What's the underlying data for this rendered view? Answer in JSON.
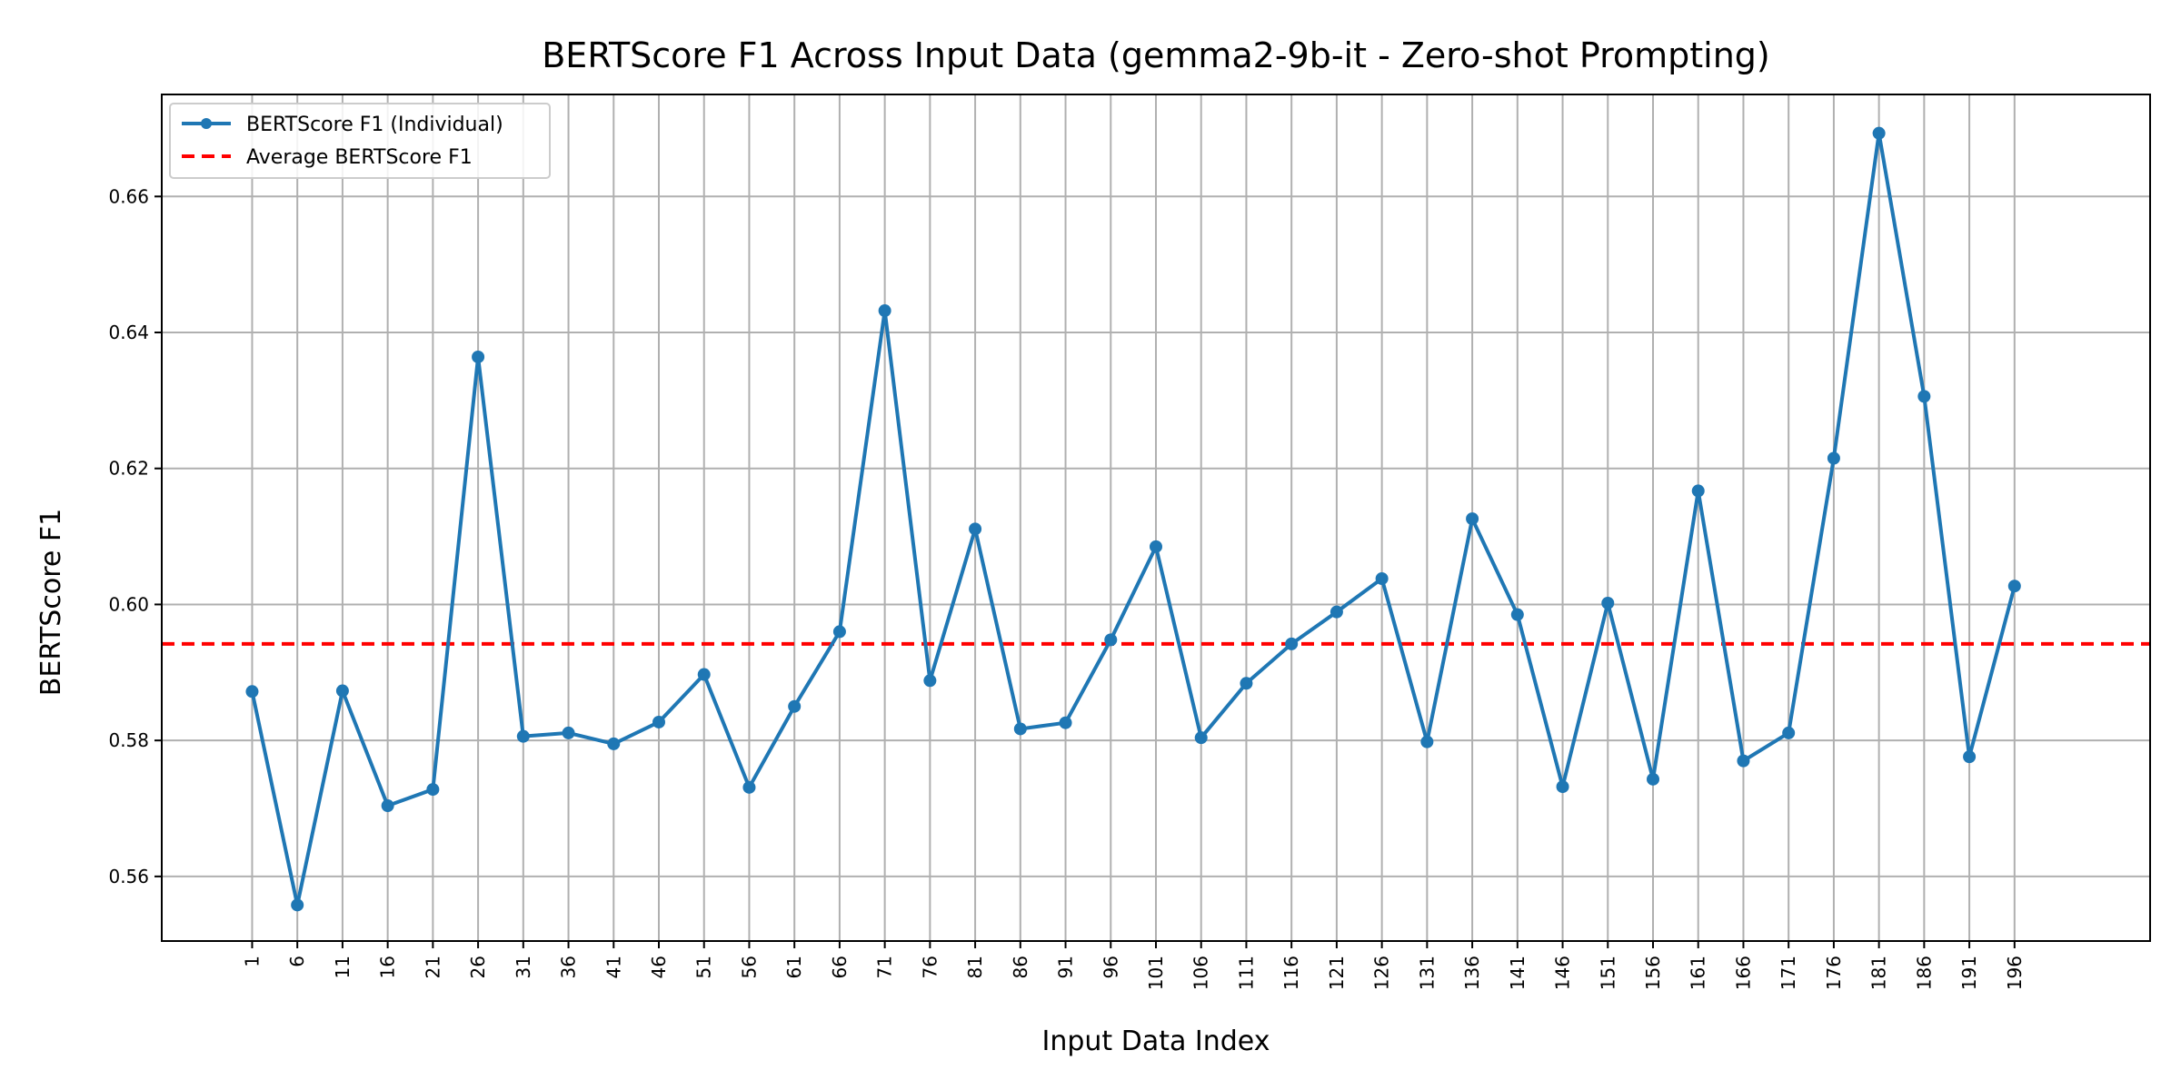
{
  "chart_data": {
    "type": "line",
    "title": "BERTScore F1 Across Input Data (gemma2-9b-it - Zero-shot Prompting)",
    "xlabel": "Input Data Index",
    "ylabel": "BERTScore F1",
    "x": [
      1,
      6,
      11,
      16,
      21,
      26,
      31,
      36,
      41,
      46,
      51,
      56,
      61,
      66,
      71,
      76,
      81,
      86,
      91,
      96,
      101,
      106,
      111,
      116,
      121,
      126,
      131,
      136,
      141,
      146,
      151,
      156,
      161,
      166,
      171,
      176,
      181,
      186,
      191,
      196
    ],
    "xlim": [
      -9,
      211
    ],
    "ylim": [
      0.5505,
      0.675
    ],
    "yticks": [
      0.56,
      0.58,
      0.6,
      0.62,
      0.64,
      0.66
    ],
    "ytick_labels": [
      "0.56",
      "0.58",
      "0.60",
      "0.62",
      "0.64",
      "0.66"
    ],
    "grid": true,
    "legend_position": "top-left",
    "series": [
      {
        "name": "BERTScore F1 (Individual)",
        "style": "line-with-markers",
        "color": "#1f77b4",
        "values": [
          0.5872,
          0.5558,
          0.5873,
          0.5704,
          0.5728,
          0.6364,
          0.5806,
          0.5811,
          0.5795,
          0.5827,
          0.5897,
          0.5731,
          0.585,
          0.596,
          0.6432,
          0.5888,
          0.6111,
          0.5817,
          0.5826,
          0.5948,
          0.6085,
          0.5804,
          0.5884,
          0.5942,
          0.5989,
          0.6038,
          0.5798,
          0.6126,
          0.5985,
          0.5732,
          0.6002,
          0.5743,
          0.6167,
          0.577,
          0.5811,
          0.6215,
          0.6693,
          0.6306,
          0.5776,
          0.6027
        ]
      },
      {
        "name": "Average BERTScore F1",
        "style": "dashed",
        "color": "#ff0000",
        "value": 0.5942
      }
    ]
  }
}
